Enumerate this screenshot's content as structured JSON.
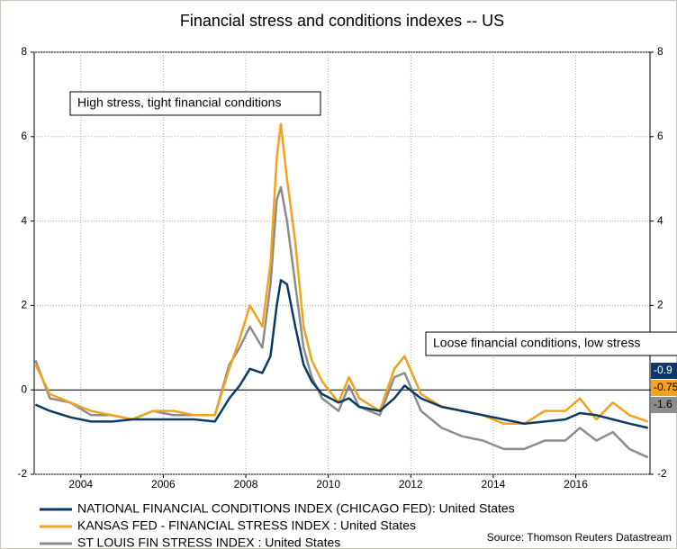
{
  "chart_data": {
    "type": "line",
    "title": "Financial stress and conditions indexes -- US",
    "annotations": [
      "High stress, tight financial conditions",
      "Loose financial conditions, low stress"
    ],
    "source": "Source: Thomson Reuters Datastream",
    "x": [
      2002.9,
      2003.25,
      2003.75,
      2004.25,
      2004.75,
      2005.25,
      2005.75,
      2006.25,
      2006.75,
      2007.25,
      2007.6,
      2007.85,
      2008.1,
      2008.4,
      2008.6,
      2008.75,
      2008.85,
      2009.0,
      2009.2,
      2009.4,
      2009.6,
      2009.85,
      2010.25,
      2010.5,
      2010.75,
      2011.25,
      2011.6,
      2011.85,
      2012.25,
      2012.75,
      2013.25,
      2013.75,
      2014.25,
      2014.75,
      2015.25,
      2015.75,
      2016.1,
      2016.5,
      2016.9,
      2017.3,
      2017.75
    ],
    "series": [
      {
        "name": "NATIONAL FINANCIAL CONDITIONS INDEX  (CHICAGO FED): United States",
        "color": "#0b3a66",
        "values": [
          -0.35,
          -0.5,
          -0.65,
          -0.75,
          -0.75,
          -0.7,
          -0.7,
          -0.7,
          -0.7,
          -0.75,
          -0.2,
          0.1,
          0.5,
          0.4,
          0.8,
          2.0,
          2.6,
          2.5,
          1.5,
          0.6,
          0.2,
          -0.1,
          -0.3,
          -0.2,
          -0.4,
          -0.5,
          -0.2,
          0.1,
          -0.2,
          -0.4,
          -0.5,
          -0.6,
          -0.7,
          -0.8,
          -0.75,
          -0.7,
          -0.55,
          -0.6,
          -0.7,
          -0.8,
          -0.9
        ]
      },
      {
        "name": "KANSAS FED - FINANCIAL STRESS INDEX : United States",
        "color": "#f4a11d",
        "values": [
          0.6,
          -0.1,
          -0.3,
          -0.5,
          -0.6,
          -0.7,
          -0.5,
          -0.5,
          -0.6,
          -0.6,
          0.5,
          1.2,
          2.0,
          1.5,
          3.0,
          5.5,
          6.3,
          5.0,
          3.5,
          1.5,
          0.7,
          0.2,
          -0.3,
          0.3,
          -0.2,
          -0.5,
          0.5,
          0.8,
          -0.1,
          -0.4,
          -0.5,
          -0.6,
          -0.8,
          -0.8,
          -0.5,
          -0.5,
          -0.2,
          -0.7,
          -0.3,
          -0.6,
          -0.75
        ]
      },
      {
        "name": "ST LOUIS FIN STRESS INDEX : United States",
        "color": "#8c8c8c",
        "values": [
          0.7,
          -0.2,
          -0.3,
          -0.6,
          -0.6,
          -0.7,
          -0.5,
          -0.6,
          -0.6,
          -0.6,
          0.6,
          1.0,
          1.5,
          1.0,
          2.5,
          4.5,
          4.8,
          4.0,
          2.5,
          1.0,
          0.3,
          -0.2,
          -0.5,
          0.1,
          -0.4,
          -0.6,
          0.3,
          0.4,
          -0.5,
          -0.9,
          -1.1,
          -1.2,
          -1.4,
          -1.4,
          -1.2,
          -1.2,
          -0.9,
          -1.2,
          -1.0,
          -1.4,
          -1.6
        ]
      }
    ],
    "xlim": [
      2002.87,
      2017.8
    ],
    "xticks": [
      2004,
      2006,
      2008,
      2010,
      2012,
      2014,
      2016
    ],
    "ylim": [
      -2,
      8
    ],
    "yticks": [
      -2,
      0,
      2,
      4,
      6,
      8
    ],
    "grid": true
  }
}
